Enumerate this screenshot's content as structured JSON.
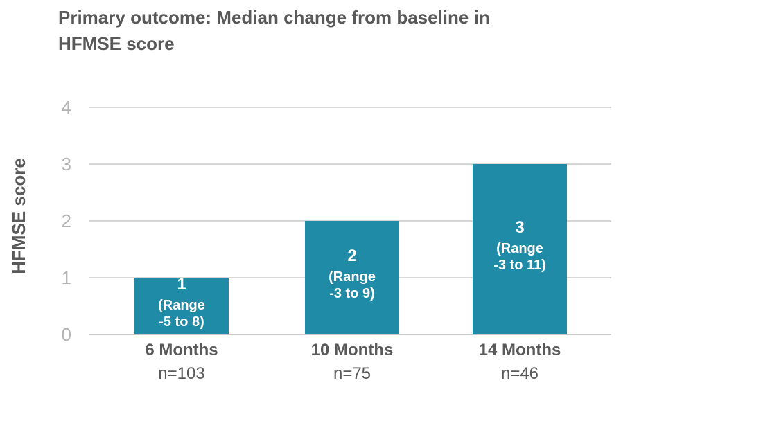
{
  "chart_data": {
    "type": "bar",
    "title_lines": [
      "Primary outcome: Median change from baseline in",
      "HFMSE score"
    ],
    "ylabel": "HFMSE score",
    "xlabel": "",
    "ylim": [
      0,
      4
    ],
    "yticks": [
      "0",
      "1",
      "2",
      "3",
      "4"
    ],
    "grid": true,
    "categories": [
      "6 Months",
      "10 Months",
      "14 Months"
    ],
    "counts": [
      "n=103",
      "n=75",
      "n=46"
    ],
    "values": [
      1,
      2,
      3
    ],
    "value_labels": [
      "1",
      "2",
      "3"
    ],
    "range_labels": [
      [
        "(Range",
        "-5 to 8)"
      ],
      [
        "(Range",
        "-3 to 9)"
      ],
      [
        "(Range",
        "-3 to 11)"
      ]
    ],
    "colors": {
      "bar": "#1f8ba6",
      "grid": "#c8c8c8",
      "text": "#595959",
      "tick": "#b3b3b3"
    }
  }
}
